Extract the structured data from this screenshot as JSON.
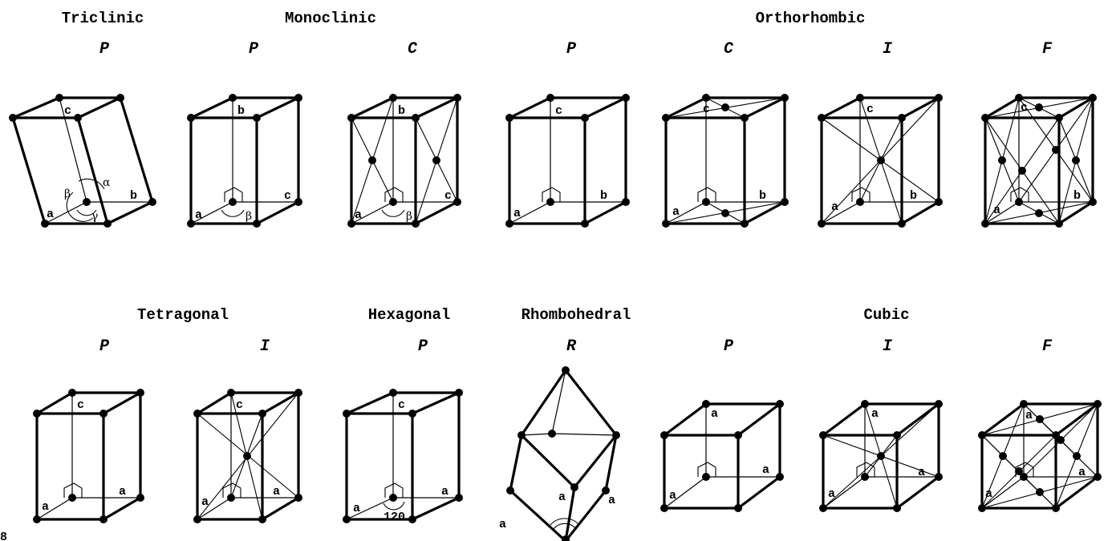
{
  "systems": [
    {
      "id": "triclinic",
      "label": "Triclinic"
    },
    {
      "id": "monoclinic",
      "label": "Monoclinic"
    },
    {
      "id": "orthorhombic",
      "label": "Orthorhombic"
    },
    {
      "id": "tetragonal",
      "label": "Tetragonal"
    },
    {
      "id": "hexagonal",
      "label": "Hexagonal"
    },
    {
      "id": "rhombohedral",
      "label": "Rhombohedral"
    },
    {
      "id": "cubic",
      "label": "Cubic"
    }
  ],
  "lattices": [
    {
      "id": "triclinic-p",
      "centering": "P",
      "axes": [
        "a",
        "b",
        "c"
      ],
      "angles": [
        "α",
        "β",
        "γ"
      ]
    },
    {
      "id": "monoclinic-p",
      "centering": "P",
      "axes": [
        "a",
        "c",
        "b"
      ],
      "angles": [
        "β"
      ]
    },
    {
      "id": "monoclinic-c",
      "centering": "C",
      "axes": [
        "a",
        "c",
        "b"
      ],
      "angles": [
        "β"
      ]
    },
    {
      "id": "orthorhombic-p",
      "centering": "P",
      "axes": [
        "a",
        "b",
        "c"
      ]
    },
    {
      "id": "orthorhombic-c",
      "centering": "C",
      "axes": [
        "a",
        "b",
        "c"
      ]
    },
    {
      "id": "orthorhombic-i",
      "centering": "I",
      "axes": [
        "a",
        "b",
        "c"
      ]
    },
    {
      "id": "orthorhombic-f",
      "centering": "F",
      "axes": [
        "a",
        "b",
        "c"
      ]
    },
    {
      "id": "tetragonal-p",
      "centering": "P",
      "axes": [
        "a",
        "a",
        "c"
      ]
    },
    {
      "id": "tetragonal-i",
      "centering": "I",
      "axes": [
        "a",
        "a",
        "c"
      ]
    },
    {
      "id": "hexagonal-p",
      "centering": "P",
      "axes": [
        "a",
        "a",
        "c"
      ],
      "angles": [
        "120"
      ]
    },
    {
      "id": "rhombohedral-r",
      "centering": "R",
      "axes": [
        "a",
        "a",
        "a"
      ]
    },
    {
      "id": "cubic-p",
      "centering": "P",
      "axes": [
        "a",
        "a",
        "a"
      ]
    },
    {
      "id": "cubic-i",
      "centering": "I",
      "axes": [
        "a",
        "a",
        "a"
      ]
    },
    {
      "id": "cubic-f",
      "centering": "F",
      "axes": [
        "a",
        "a",
        "a"
      ]
    }
  ],
  "corner_mark": "8"
}
